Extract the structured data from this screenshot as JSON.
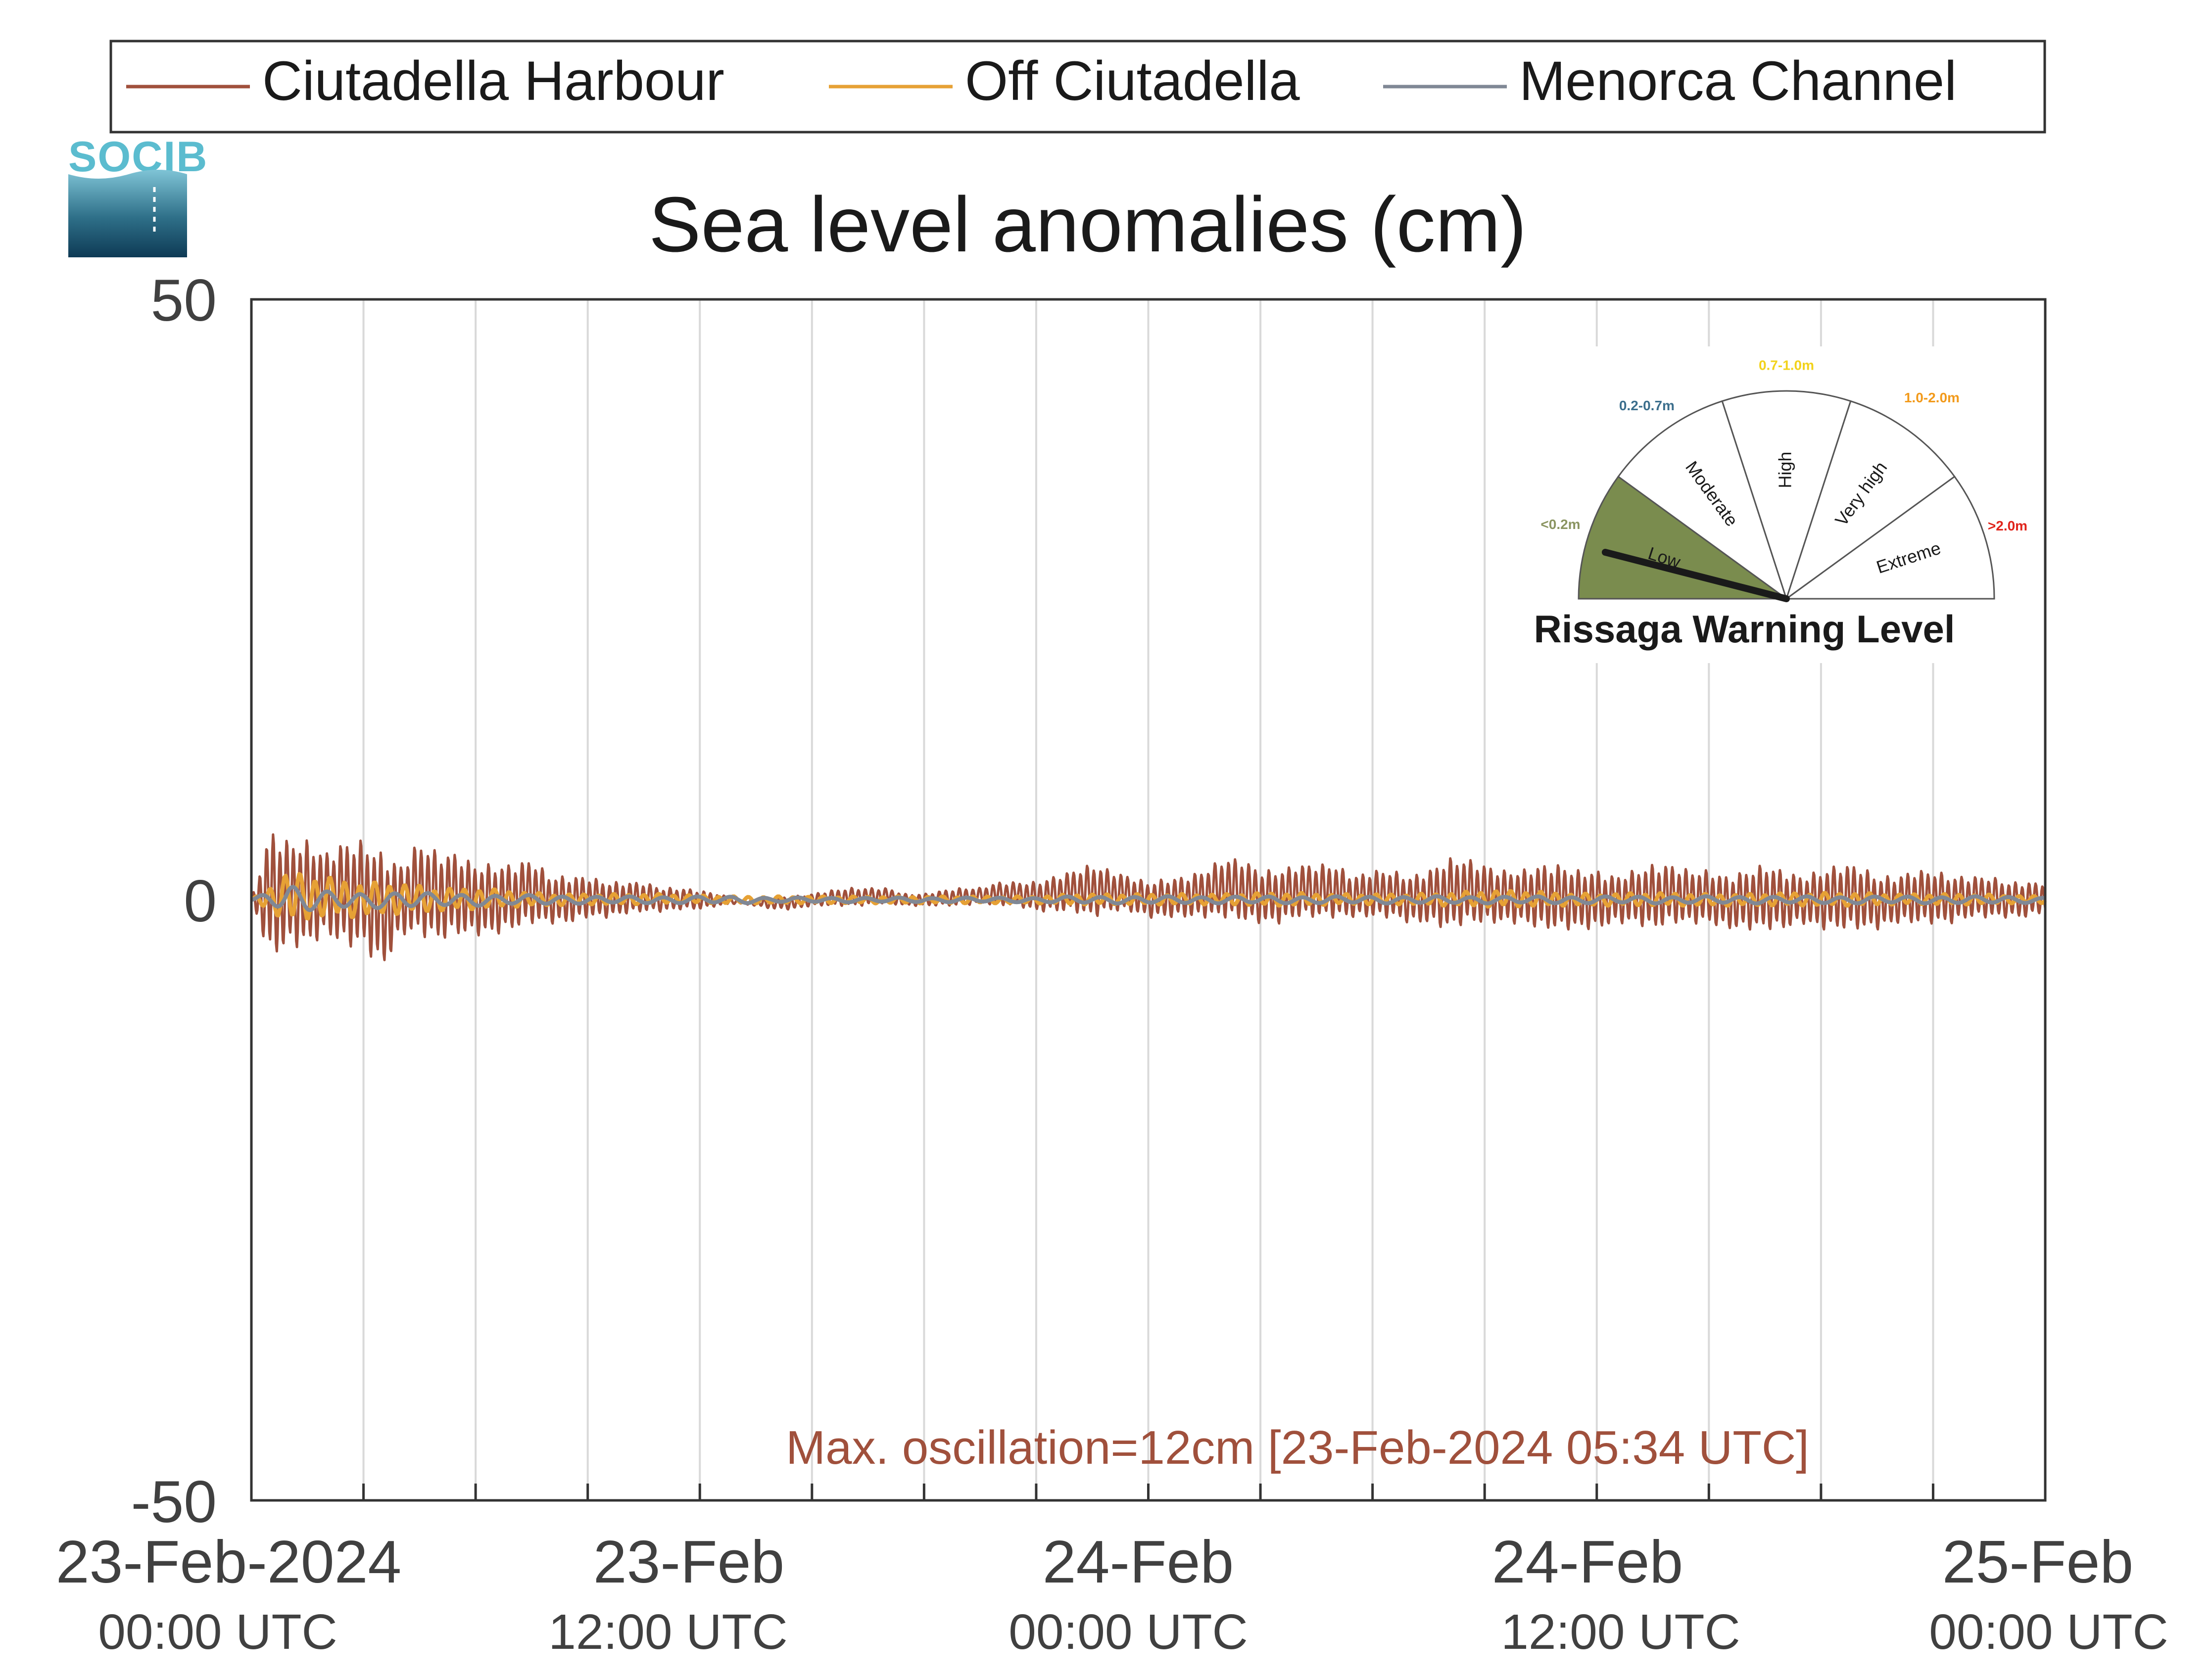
{
  "logo": {
    "text": "SOCIB"
  },
  "chart_data": {
    "type": "line",
    "title": "Sea level anomalies (cm)",
    "xlabel": "",
    "ylabel": "",
    "ylim": [
      -50,
      50
    ],
    "yticks": [
      "50",
      "0",
      "-50"
    ],
    "xlim": [
      "2024-02-23T00:00",
      "2024-02-25T00:00"
    ],
    "x_tick_labels": [
      {
        "x": "2024-02-23T00:00",
        "date": "23-Feb-2024",
        "time": "00:00 UTC"
      },
      {
        "x": "2024-02-23T12:00",
        "date": "23-Feb",
        "time": "12:00 UTC"
      },
      {
        "x": "2024-02-24T00:00",
        "date": "24-Feb",
        "time": "00:00 UTC"
      },
      {
        "x": "2024-02-24T12:00",
        "date": "24-Feb",
        "time": "12:00 UTC"
      },
      {
        "x": "2024-02-25T00:00",
        "date": "25-Feb",
        "time": "00:00 UTC"
      }
    ],
    "grid": "vertical lines every 3 hours",
    "legend": {
      "placement": "top, outside plot"
    },
    "series": [
      {
        "name": "Ciutadella Harbour",
        "color": "#a0503c",
        "x_hours": [
          0,
          0.5,
          1,
          1.5,
          2,
          2.5,
          3,
          3.5,
          4,
          4.5,
          5,
          5.5,
          6,
          6.5,
          7,
          7.5,
          8,
          8.5,
          9,
          9.5,
          10,
          10.5,
          11,
          11.5,
          12,
          12.5,
          13,
          13.5,
          14,
          14.5,
          15,
          15.5,
          16,
          16.5,
          17,
          17.5,
          18,
          18.5,
          19,
          19.5,
          20,
          20.5,
          21,
          21.5,
          22,
          22.5,
          23,
          23.5,
          24,
          24.5,
          25,
          25.5,
          26,
          26.5,
          27,
          27.5,
          28,
          28.5,
          29,
          29.5,
          30,
          30.5,
          31,
          31.5,
          32,
          32.5,
          33,
          33.5,
          34,
          34.5,
          35,
          35.5,
          36,
          36.5,
          37,
          37.5,
          38,
          38.5,
          39,
          39.5,
          40,
          40.5,
          41,
          41.5,
          42,
          42.5,
          43,
          43.5,
          44,
          44.5,
          45,
          45.5,
          46,
          46.5,
          47,
          47.5,
          48
        ],
        "max": [
          0,
          6,
          5,
          5,
          4,
          5,
          5,
          4,
          3,
          5,
          4,
          4,
          3,
          3,
          3,
          3.5,
          2,
          2,
          2,
          1.5,
          1.5,
          1.5,
          1,
          1,
          0.8,
          0.5,
          0,
          0,
          0.3,
          0.3,
          0.5,
          0.8,
          1,
          1,
          1,
          0.5,
          0.5,
          0.8,
          1,
          1,
          1.5,
          1.5,
          1.5,
          2,
          2.5,
          3,
          2.5,
          2,
          1.5,
          1.8,
          2,
          2.5,
          3.5,
          3.5,
          2.5,
          2.5,
          3,
          3,
          3,
          2,
          2.5,
          2.5,
          2,
          2.5,
          3.5,
          3.5,
          3,
          2.5,
          2.5,
          3,
          3,
          2.5,
          2.5,
          2,
          2.5,
          3,
          3,
          2.5,
          2.5,
          2,
          2.5,
          3,
          2.5,
          2,
          2.5,
          3,
          3,
          2,
          2,
          2.5,
          2.5,
          2,
          2,
          2,
          1.5,
          1.5,
          1.5
        ],
        "min": [
          0,
          -5,
          -4,
          -4,
          -3,
          -4,
          -4,
          -6,
          -3,
          -3,
          -3.5,
          -3,
          -3,
          -3,
          -2.5,
          -2,
          -2,
          -2,
          -1.5,
          -1.5,
          -1.2,
          -1,
          -1,
          -0.8,
          -0.8,
          -0.5,
          -0.3,
          -0.5,
          -0.8,
          -0.8,
          -0.5,
          -0.5,
          -0.5,
          -0.5,
          -0.3,
          -0.5,
          -0.5,
          -0.5,
          -0.5,
          -0.3,
          -0.5,
          -0.5,
          -1,
          -1,
          -1,
          -1.5,
          -1,
          -1,
          -1.5,
          -1.5,
          -1.5,
          -1.5,
          -1.5,
          -1.8,
          -2,
          -2,
          -1.5,
          -1.5,
          -1.5,
          -1.5,
          -1.5,
          -1.5,
          -2,
          -2,
          -2.5,
          -2,
          -2,
          -2,
          -2,
          -2.5,
          -2.5,
          -2.5,
          -2.5,
          -2,
          -2,
          -2.5,
          -2,
          -2,
          -2,
          -2.5,
          -2.5,
          -2.5,
          -2.5,
          -2,
          -2.5,
          -2.5,
          -2.5,
          -2.5,
          -2,
          -2,
          -2,
          -2,
          -1.5,
          -1.5,
          -1.5,
          -1.5,
          -1
        ]
      },
      {
        "name": "Off Ciutadella",
        "color": "#e6a135",
        "x_hours": [
          0,
          1,
          2,
          3,
          4,
          5,
          6,
          7,
          8,
          9,
          10,
          11,
          12,
          13,
          14,
          15,
          16,
          17,
          18,
          19,
          20,
          21,
          22,
          23,
          24,
          25,
          26,
          27,
          28,
          29,
          30,
          31,
          32,
          33,
          34,
          35,
          36,
          37,
          38,
          39,
          40,
          41,
          42,
          43,
          44,
          45,
          46,
          47,
          48
        ],
        "max": [
          0,
          2.5,
          2,
          1.5,
          1.5,
          1,
          1,
          0.8,
          0.5,
          0.5,
          0.5,
          0.5,
          0.4,
          0.3,
          0.3,
          0.3,
          0.3,
          0.3,
          0.3,
          0.3,
          0.3,
          0.3,
          0.5,
          0.5,
          0.5,
          0.5,
          0.5,
          0.6,
          0.6,
          0.5,
          0.5,
          0.5,
          0.6,
          0.8,
          0.8,
          0.6,
          0.5,
          0.6,
          0.6,
          0.5,
          0.5,
          0.6,
          0.6,
          0.6,
          0.5,
          0.5,
          0.5,
          0.4,
          0.3
        ],
        "min": [
          0,
          -2,
          -1.5,
          -1.5,
          -1.2,
          -1,
          -0.8,
          -0.6,
          -0.5,
          -0.4,
          -0.4,
          -0.3,
          -0.3,
          -0.3,
          -0.3,
          -0.3,
          -0.3,
          -0.3,
          -0.3,
          -0.3,
          -0.3,
          -0.3,
          -0.4,
          -0.4,
          -0.4,
          -0.4,
          -0.4,
          -0.5,
          -0.5,
          -0.4,
          -0.4,
          -0.4,
          -0.5,
          -0.6,
          -0.6,
          -0.5,
          -0.5,
          -0.5,
          -0.5,
          -0.5,
          -0.5,
          -0.5,
          -0.5,
          -0.5,
          -0.4,
          -0.4,
          -0.4,
          -0.3,
          -0.3
        ]
      },
      {
        "name": "Menorca Channel",
        "color": "#808895",
        "x_hours": [
          0,
          1,
          2,
          3,
          4,
          5,
          6,
          7,
          8,
          9,
          10,
          11,
          12,
          13,
          14,
          15,
          16,
          17,
          18,
          19,
          20,
          21,
          22,
          23,
          24,
          25,
          26,
          27,
          28,
          29,
          30,
          31,
          32,
          33,
          34,
          35,
          36,
          37,
          38,
          39,
          40,
          41,
          42,
          43,
          44,
          45,
          46,
          47,
          48
        ],
        "max": [
          0,
          1.5,
          0.8,
          0.5,
          0.8,
          0.5,
          0.5,
          0.4,
          0.4,
          0.3,
          0.3,
          0.3,
          0.3,
          0.3,
          0.2,
          0.2,
          0.2,
          0.2,
          0.2,
          0.2,
          0.2,
          0.2,
          0.3,
          0.3,
          0.3,
          0.3,
          0.3,
          0.3,
          0.3,
          0.3,
          0.3,
          0.3,
          0.3,
          0.3,
          0.3,
          0.3,
          0.3,
          0.3,
          0.3,
          0.3,
          0.3,
          0.3,
          0.3,
          0.3,
          0.3,
          0.3,
          0.3,
          0.3,
          0.2
        ],
        "min": [
          0,
          -1,
          -0.8,
          -0.8,
          -0.6,
          -0.6,
          -0.5,
          -0.4,
          -0.4,
          -0.3,
          -0.3,
          -0.3,
          -0.3,
          -0.3,
          -0.2,
          -0.2,
          -0.2,
          -0.2,
          -0.2,
          -0.2,
          -0.2,
          -0.2,
          -0.3,
          -0.3,
          -0.3,
          -0.3,
          -0.3,
          -0.3,
          -0.3,
          -0.3,
          -0.3,
          -0.3,
          -0.3,
          -0.3,
          -0.3,
          -0.3,
          -0.3,
          -0.3,
          -0.3,
          -0.3,
          -0.3,
          -0.3,
          -0.3,
          -0.3,
          -0.3,
          -0.3,
          -0.3,
          -0.3,
          -0.2
        ]
      }
    ],
    "annotation": "Max. oscillation=12cm [23-Feb-2024 05:34 UTC]",
    "annotation_color": "#a0503c"
  },
  "gauge": {
    "title": "Rissaga Warning Level",
    "current_level": "Low",
    "needle_fraction": 0.08,
    "sectors": [
      {
        "name": "Low",
        "range": "<0.2m",
        "color": "#7a8c4e",
        "range_color": "#8a9460",
        "active": true
      },
      {
        "name": "Moderate",
        "range": "0.2-0.7m",
        "color": "#ffffff",
        "range_color": "#3b6e8c",
        "active": false
      },
      {
        "name": "High",
        "range": "0.7-1.0m",
        "color": "#ffffff",
        "range_color": "#f2d21b",
        "active": false
      },
      {
        "name": "Very high",
        "range": "1.0-2.0m",
        "color": "#ffffff",
        "range_color": "#f29a1b",
        "active": false
      },
      {
        "name": "Extreme",
        "range": ">2.0m",
        "color": "#ffffff",
        "range_color": "#e0241b",
        "active": false
      }
    ]
  }
}
